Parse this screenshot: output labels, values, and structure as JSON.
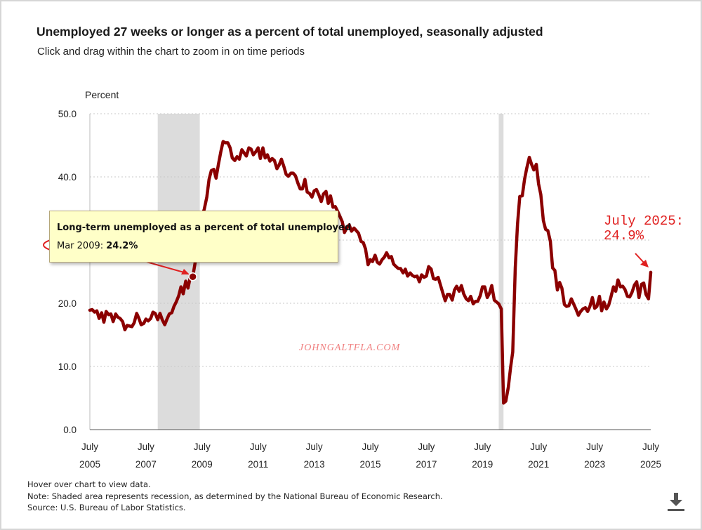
{
  "header": {
    "title": "Unemployed 27 weeks or longer as a percent of total unemployed, seasonally adjusted",
    "subtitle": "Click and drag within the chart to zoom in on time periods"
  },
  "chart_data": {
    "type": "line",
    "title": "Unemployed 27 weeks or longer as a percent of total unemployed, seasonally adjusted",
    "ylabel": "Percent",
    "xlabel": "",
    "ylim": [
      0,
      50
    ],
    "yticks": [
      "0.0",
      "10.0",
      "20.0",
      "30.0",
      "40.0",
      "50.0"
    ],
    "xlim": [
      2005.5,
      2025.5
    ],
    "xticks": [
      {
        "month": "July",
        "year": "2005",
        "x": 2005.5
      },
      {
        "month": "July",
        "year": "2007",
        "x": 2007.5
      },
      {
        "month": "July",
        "year": "2009",
        "x": 2009.5
      },
      {
        "month": "July",
        "year": "2011",
        "x": 2011.5
      },
      {
        "month": "July",
        "year": "2013",
        "x": 2013.5
      },
      {
        "month": "July",
        "year": "2015",
        "x": 2015.5
      },
      {
        "month": "July",
        "year": "2017",
        "x": 2017.5
      },
      {
        "month": "July",
        "year": "2019",
        "x": 2019.5
      },
      {
        "month": "July",
        "year": "2021",
        "x": 2021.5
      },
      {
        "month": "July",
        "year": "2023",
        "x": 2023.5
      },
      {
        "month": "July",
        "year": "2025",
        "x": 2025.5
      }
    ],
    "grid": "horizontal dotted",
    "recessions": [
      {
        "start": 2007.92,
        "end": 2009.42
      },
      {
        "start": 2020.08,
        "end": 2020.25
      }
    ],
    "series": [
      {
        "name": "Long-term unemployed as a percent of total unemployed",
        "color": "#8b0000",
        "points": [
          [
            2005.5,
            18.9
          ],
          [
            2005.58,
            19.0
          ],
          [
            2005.67,
            18.6
          ],
          [
            2005.75,
            18.8
          ],
          [
            2005.83,
            17.6
          ],
          [
            2005.92,
            18.5
          ],
          [
            2006.0,
            17.0
          ],
          [
            2006.08,
            18.7
          ],
          [
            2006.17,
            18.2
          ],
          [
            2006.25,
            18.3
          ],
          [
            2006.33,
            17.1
          ],
          [
            2006.42,
            18.3
          ],
          [
            2006.5,
            17.8
          ],
          [
            2006.58,
            17.6
          ],
          [
            2006.67,
            17.1
          ],
          [
            2006.75,
            15.8
          ],
          [
            2006.83,
            16.5
          ],
          [
            2006.92,
            16.4
          ],
          [
            2007.0,
            16.3
          ],
          [
            2007.08,
            16.9
          ],
          [
            2007.17,
            18.4
          ],
          [
            2007.25,
            17.6
          ],
          [
            2007.33,
            16.6
          ],
          [
            2007.42,
            16.8
          ],
          [
            2007.5,
            17.5
          ],
          [
            2007.58,
            17.2
          ],
          [
            2007.67,
            17.6
          ],
          [
            2007.75,
            18.6
          ],
          [
            2007.83,
            18.4
          ],
          [
            2007.92,
            17.4
          ],
          [
            2008.0,
            18.4
          ],
          [
            2008.08,
            17.4
          ],
          [
            2008.17,
            16.6
          ],
          [
            2008.25,
            17.5
          ],
          [
            2008.33,
            18.3
          ],
          [
            2008.42,
            18.5
          ],
          [
            2008.5,
            19.5
          ],
          [
            2008.58,
            20.2
          ],
          [
            2008.67,
            21.2
          ],
          [
            2008.75,
            22.6
          ],
          [
            2008.83,
            21.5
          ],
          [
            2008.92,
            23.5
          ],
          [
            2009.0,
            22.4
          ],
          [
            2009.08,
            24.1
          ],
          [
            2009.17,
            24.2
          ],
          [
            2009.25,
            26.3
          ],
          [
            2009.33,
            28.5
          ],
          [
            2009.42,
            31.5
          ],
          [
            2009.5,
            33.8
          ],
          [
            2009.58,
            34.9
          ],
          [
            2009.67,
            36.8
          ],
          [
            2009.75,
            39.6
          ],
          [
            2009.83,
            41.0
          ],
          [
            2009.92,
            41.2
          ],
          [
            2010.0,
            39.8
          ],
          [
            2010.08,
            41.9
          ],
          [
            2010.17,
            44.0
          ],
          [
            2010.25,
            45.6
          ],
          [
            2010.33,
            45.4
          ],
          [
            2010.42,
            45.4
          ],
          [
            2010.5,
            44.6
          ],
          [
            2010.58,
            43.0
          ],
          [
            2010.67,
            42.6
          ],
          [
            2010.75,
            43.2
          ],
          [
            2010.83,
            42.8
          ],
          [
            2010.92,
            44.3
          ],
          [
            2011.0,
            43.8
          ],
          [
            2011.08,
            43.3
          ],
          [
            2011.17,
            44.6
          ],
          [
            2011.25,
            44.4
          ],
          [
            2011.33,
            43.5
          ],
          [
            2011.42,
            44.0
          ],
          [
            2011.5,
            44.6
          ],
          [
            2011.58,
            42.9
          ],
          [
            2011.67,
            44.6
          ],
          [
            2011.75,
            43.0
          ],
          [
            2011.83,
            43.5
          ],
          [
            2011.92,
            42.5
          ],
          [
            2012.0,
            42.9
          ],
          [
            2012.08,
            42.6
          ],
          [
            2012.17,
            41.3
          ],
          [
            2012.25,
            41.9
          ],
          [
            2012.33,
            42.8
          ],
          [
            2012.42,
            41.6
          ],
          [
            2012.5,
            40.4
          ],
          [
            2012.58,
            40.1
          ],
          [
            2012.67,
            40.6
          ],
          [
            2012.75,
            40.6
          ],
          [
            2012.83,
            40.2
          ],
          [
            2012.92,
            39.0
          ],
          [
            2013.0,
            38.1
          ],
          [
            2013.08,
            38.1
          ],
          [
            2013.17,
            39.6
          ],
          [
            2013.25,
            37.6
          ],
          [
            2013.33,
            37.4
          ],
          [
            2013.42,
            36.8
          ],
          [
            2013.5,
            37.8
          ],
          [
            2013.58,
            38.0
          ],
          [
            2013.67,
            37.1
          ],
          [
            2013.75,
            36.1
          ],
          [
            2013.83,
            37.3
          ],
          [
            2013.92,
            37.7
          ],
          [
            2014.0,
            35.8
          ],
          [
            2014.08,
            37.0
          ],
          [
            2014.17,
            35.2
          ],
          [
            2014.25,
            35.3
          ],
          [
            2014.33,
            34.6
          ],
          [
            2014.42,
            33.7
          ],
          [
            2014.5,
            32.9
          ],
          [
            2014.58,
            31.2
          ],
          [
            2014.67,
            32.0
          ],
          [
            2014.75,
            32.4
          ],
          [
            2014.83,
            31.4
          ],
          [
            2014.92,
            31.9
          ],
          [
            2015.0,
            31.5
          ],
          [
            2015.08,
            31.1
          ],
          [
            2015.17,
            29.8
          ],
          [
            2015.25,
            29.6
          ],
          [
            2015.33,
            28.6
          ],
          [
            2015.42,
            26.1
          ],
          [
            2015.5,
            26.9
          ],
          [
            2015.58,
            26.6
          ],
          [
            2015.67,
            27.6
          ],
          [
            2015.75,
            26.5
          ],
          [
            2015.83,
            26.2
          ],
          [
            2015.92,
            26.9
          ],
          [
            2016.0,
            27.3
          ],
          [
            2016.08,
            28.0
          ],
          [
            2016.17,
            27.2
          ],
          [
            2016.25,
            27.4
          ],
          [
            2016.33,
            26.2
          ],
          [
            2016.42,
            25.8
          ],
          [
            2016.5,
            25.5
          ],
          [
            2016.58,
            25.5
          ],
          [
            2016.67,
            24.8
          ],
          [
            2016.75,
            25.4
          ],
          [
            2016.83,
            24.3
          ],
          [
            2016.92,
            24.8
          ],
          [
            2017.0,
            24.4
          ],
          [
            2017.08,
            24.2
          ],
          [
            2017.17,
            24.3
          ],
          [
            2017.25,
            23.4
          ],
          [
            2017.33,
            24.5
          ],
          [
            2017.42,
            24.1
          ],
          [
            2017.5,
            24.3
          ],
          [
            2017.58,
            25.8
          ],
          [
            2017.67,
            25.4
          ],
          [
            2017.75,
            23.9
          ],
          [
            2017.83,
            23.8
          ],
          [
            2017.92,
            24.1
          ],
          [
            2018.0,
            22.9
          ],
          [
            2018.08,
            21.7
          ],
          [
            2018.17,
            20.4
          ],
          [
            2018.25,
            21.4
          ],
          [
            2018.33,
            21.4
          ],
          [
            2018.42,
            20.5
          ],
          [
            2018.5,
            22.1
          ],
          [
            2018.58,
            22.7
          ],
          [
            2018.67,
            21.9
          ],
          [
            2018.75,
            22.8
          ],
          [
            2018.83,
            21.5
          ],
          [
            2018.92,
            20.7
          ],
          [
            2019.0,
            20.4
          ],
          [
            2019.08,
            21.1
          ],
          [
            2019.17,
            19.9
          ],
          [
            2019.25,
            20.3
          ],
          [
            2019.33,
            20.3
          ],
          [
            2019.42,
            21.2
          ],
          [
            2019.5,
            22.6
          ],
          [
            2019.58,
            22.6
          ],
          [
            2019.67,
            20.9
          ],
          [
            2019.75,
            21.6
          ],
          [
            2019.83,
            22.8
          ],
          [
            2019.92,
            20.5
          ],
          [
            2020.0,
            20.2
          ],
          [
            2020.08,
            19.9
          ],
          [
            2020.17,
            19.1
          ],
          [
            2020.25,
            4.2
          ],
          [
            2020.33,
            4.5
          ],
          [
            2020.42,
            6.7
          ],
          [
            2020.5,
            9.8
          ],
          [
            2020.58,
            12.3
          ],
          [
            2020.67,
            25.6
          ],
          [
            2020.75,
            32.5
          ],
          [
            2020.83,
            36.9
          ],
          [
            2020.92,
            37.0
          ],
          [
            2021.0,
            39.6
          ],
          [
            2021.08,
            41.4
          ],
          [
            2021.17,
            43.1
          ],
          [
            2021.25,
            42.0
          ],
          [
            2021.33,
            41.1
          ],
          [
            2021.42,
            42.0
          ],
          [
            2021.5,
            38.9
          ],
          [
            2021.58,
            37.2
          ],
          [
            2021.67,
            33.1
          ],
          [
            2021.75,
            31.7
          ],
          [
            2021.83,
            31.5
          ],
          [
            2021.92,
            29.8
          ],
          [
            2022.0,
            25.6
          ],
          [
            2022.08,
            25.2
          ],
          [
            2022.17,
            22.1
          ],
          [
            2022.25,
            23.3
          ],
          [
            2022.33,
            22.4
          ],
          [
            2022.42,
            19.8
          ],
          [
            2022.5,
            19.5
          ],
          [
            2022.58,
            19.6
          ],
          [
            2022.67,
            20.7
          ],
          [
            2022.75,
            19.9
          ],
          [
            2022.83,
            19.1
          ],
          [
            2022.92,
            18.1
          ],
          [
            2023.0,
            18.7
          ],
          [
            2023.08,
            19.1
          ],
          [
            2023.17,
            19.3
          ],
          [
            2023.25,
            18.7
          ],
          [
            2023.33,
            19.5
          ],
          [
            2023.42,
            20.9
          ],
          [
            2023.5,
            19.2
          ],
          [
            2023.58,
            19.5
          ],
          [
            2023.67,
            21.1
          ],
          [
            2023.75,
            18.8
          ],
          [
            2023.83,
            20.2
          ],
          [
            2023.92,
            19.1
          ],
          [
            2024.0,
            19.7
          ],
          [
            2024.08,
            21.0
          ],
          [
            2024.17,
            22.6
          ],
          [
            2024.25,
            21.9
          ],
          [
            2024.33,
            23.7
          ],
          [
            2024.42,
            22.6
          ],
          [
            2024.5,
            22.7
          ],
          [
            2024.58,
            22.2
          ],
          [
            2024.67,
            21.1
          ],
          [
            2024.75,
            21.0
          ],
          [
            2024.83,
            21.7
          ],
          [
            2024.92,
            22.9
          ],
          [
            2025.0,
            23.4
          ],
          [
            2025.08,
            20.9
          ],
          [
            2025.17,
            23.0
          ],
          [
            2025.25,
            23.2
          ],
          [
            2025.33,
            21.4
          ],
          [
            2025.42,
            20.7
          ],
          [
            2025.5,
            24.9
          ]
        ]
      }
    ],
    "highlight_point": {
      "x": 2009.17,
      "y": 24.2
    },
    "tooltip": {
      "title": "Long-term unemployed as a percent of total unemployed",
      "date_label": "Mar 2009: ",
      "value_label": "24.2%"
    },
    "annotations": {
      "callout_line1": "July 2025:",
      "callout_line2": "24.9%",
      "watermark": "JOHNGALTFLA.COM"
    }
  },
  "notes": {
    "line1": "Hover over chart to view data.",
    "line2": "Note: Shaded area represents recession, as determined by the National Bureau of Economic Research.",
    "line3": "Source: U.S. Bureau of Labor Statistics."
  },
  "icons": {
    "download": "download-icon"
  },
  "colors": {
    "line": "#8b0000",
    "recession": "#dcdcdc",
    "annotation": "#e02020",
    "tooltip_bg": "#ffffc8"
  }
}
